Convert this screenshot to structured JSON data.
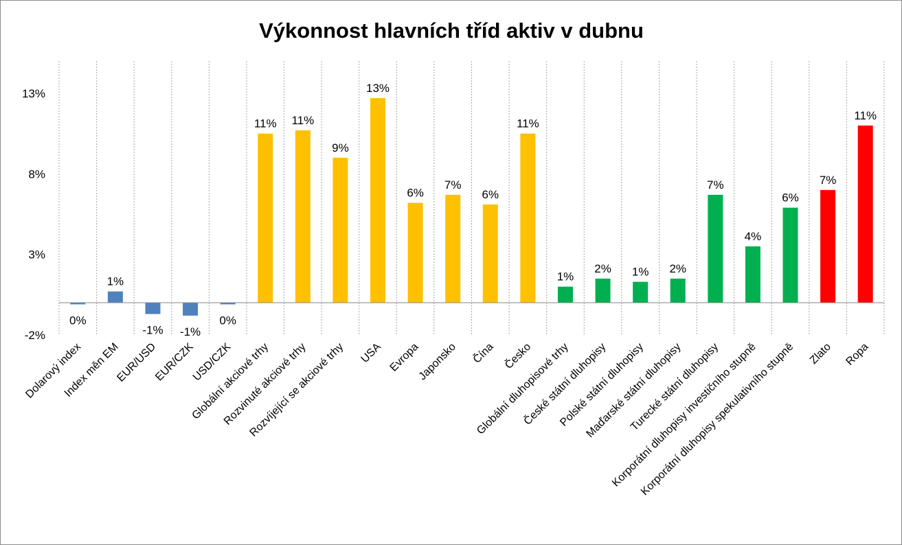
{
  "chart_data": {
    "type": "bar",
    "title": "Výkonnost hlavních tříd aktiv v dubnu",
    "xlabel": "",
    "ylabel": "",
    "ylim": [
      -2,
      15
    ],
    "yticks": [
      -2,
      3,
      8,
      13
    ],
    "ytick_labels": [
      "-2%",
      "3%",
      "8%",
      "13%"
    ],
    "grid": "vertical",
    "legend": "none",
    "categories": [
      "Dolarový index",
      "Index měn EM",
      "EUR/USD",
      "EUR/CZK",
      "USD/CZK",
      "Globální akciové trhy",
      "Rozvinuté akciové trhy",
      "Rozvíjející se akciové trhy",
      "USA",
      "Evropa",
      "Japonsko",
      "Čína",
      "Česko",
      "Globální dluhopisové trhy",
      "České státní dluhopisy",
      "Polské státní dluhopisy",
      "Maďarské státní dluhopisy",
      "Turecké státní dluhopisy",
      "Korporátní dluhopisy investičního stupně",
      "Korporátní dluhopisy spekulativního stupně",
      "Zlato",
      "Ropa"
    ],
    "values": [
      -0.1,
      0.7,
      -0.7,
      -0.8,
      -0.1,
      10.5,
      10.7,
      9.0,
      12.7,
      6.2,
      6.7,
      6.1,
      10.5,
      1.0,
      1.5,
      1.3,
      1.5,
      6.7,
      3.5,
      5.9,
      7.0,
      11.0
    ],
    "value_labels": [
      "0%",
      "1%",
      "-1%",
      "-1%",
      "0%",
      "11%",
      "11%",
      "9%",
      "13%",
      "6%",
      "7%",
      "6%",
      "11%",
      "1%",
      "2%",
      "1%",
      "2%",
      "7%",
      "4%",
      "6%",
      "7%",
      "11%"
    ],
    "colors": [
      "#4f81bd",
      "#4f81bd",
      "#4f81bd",
      "#4f81bd",
      "#4f81bd",
      "#ffc000",
      "#ffc000",
      "#ffc000",
      "#ffc000",
      "#ffc000",
      "#ffc000",
      "#ffc000",
      "#ffc000",
      "#00b050",
      "#00b050",
      "#00b050",
      "#00b050",
      "#00b050",
      "#00b050",
      "#00b050",
      "#ff0000",
      "#ff0000"
    ]
  }
}
